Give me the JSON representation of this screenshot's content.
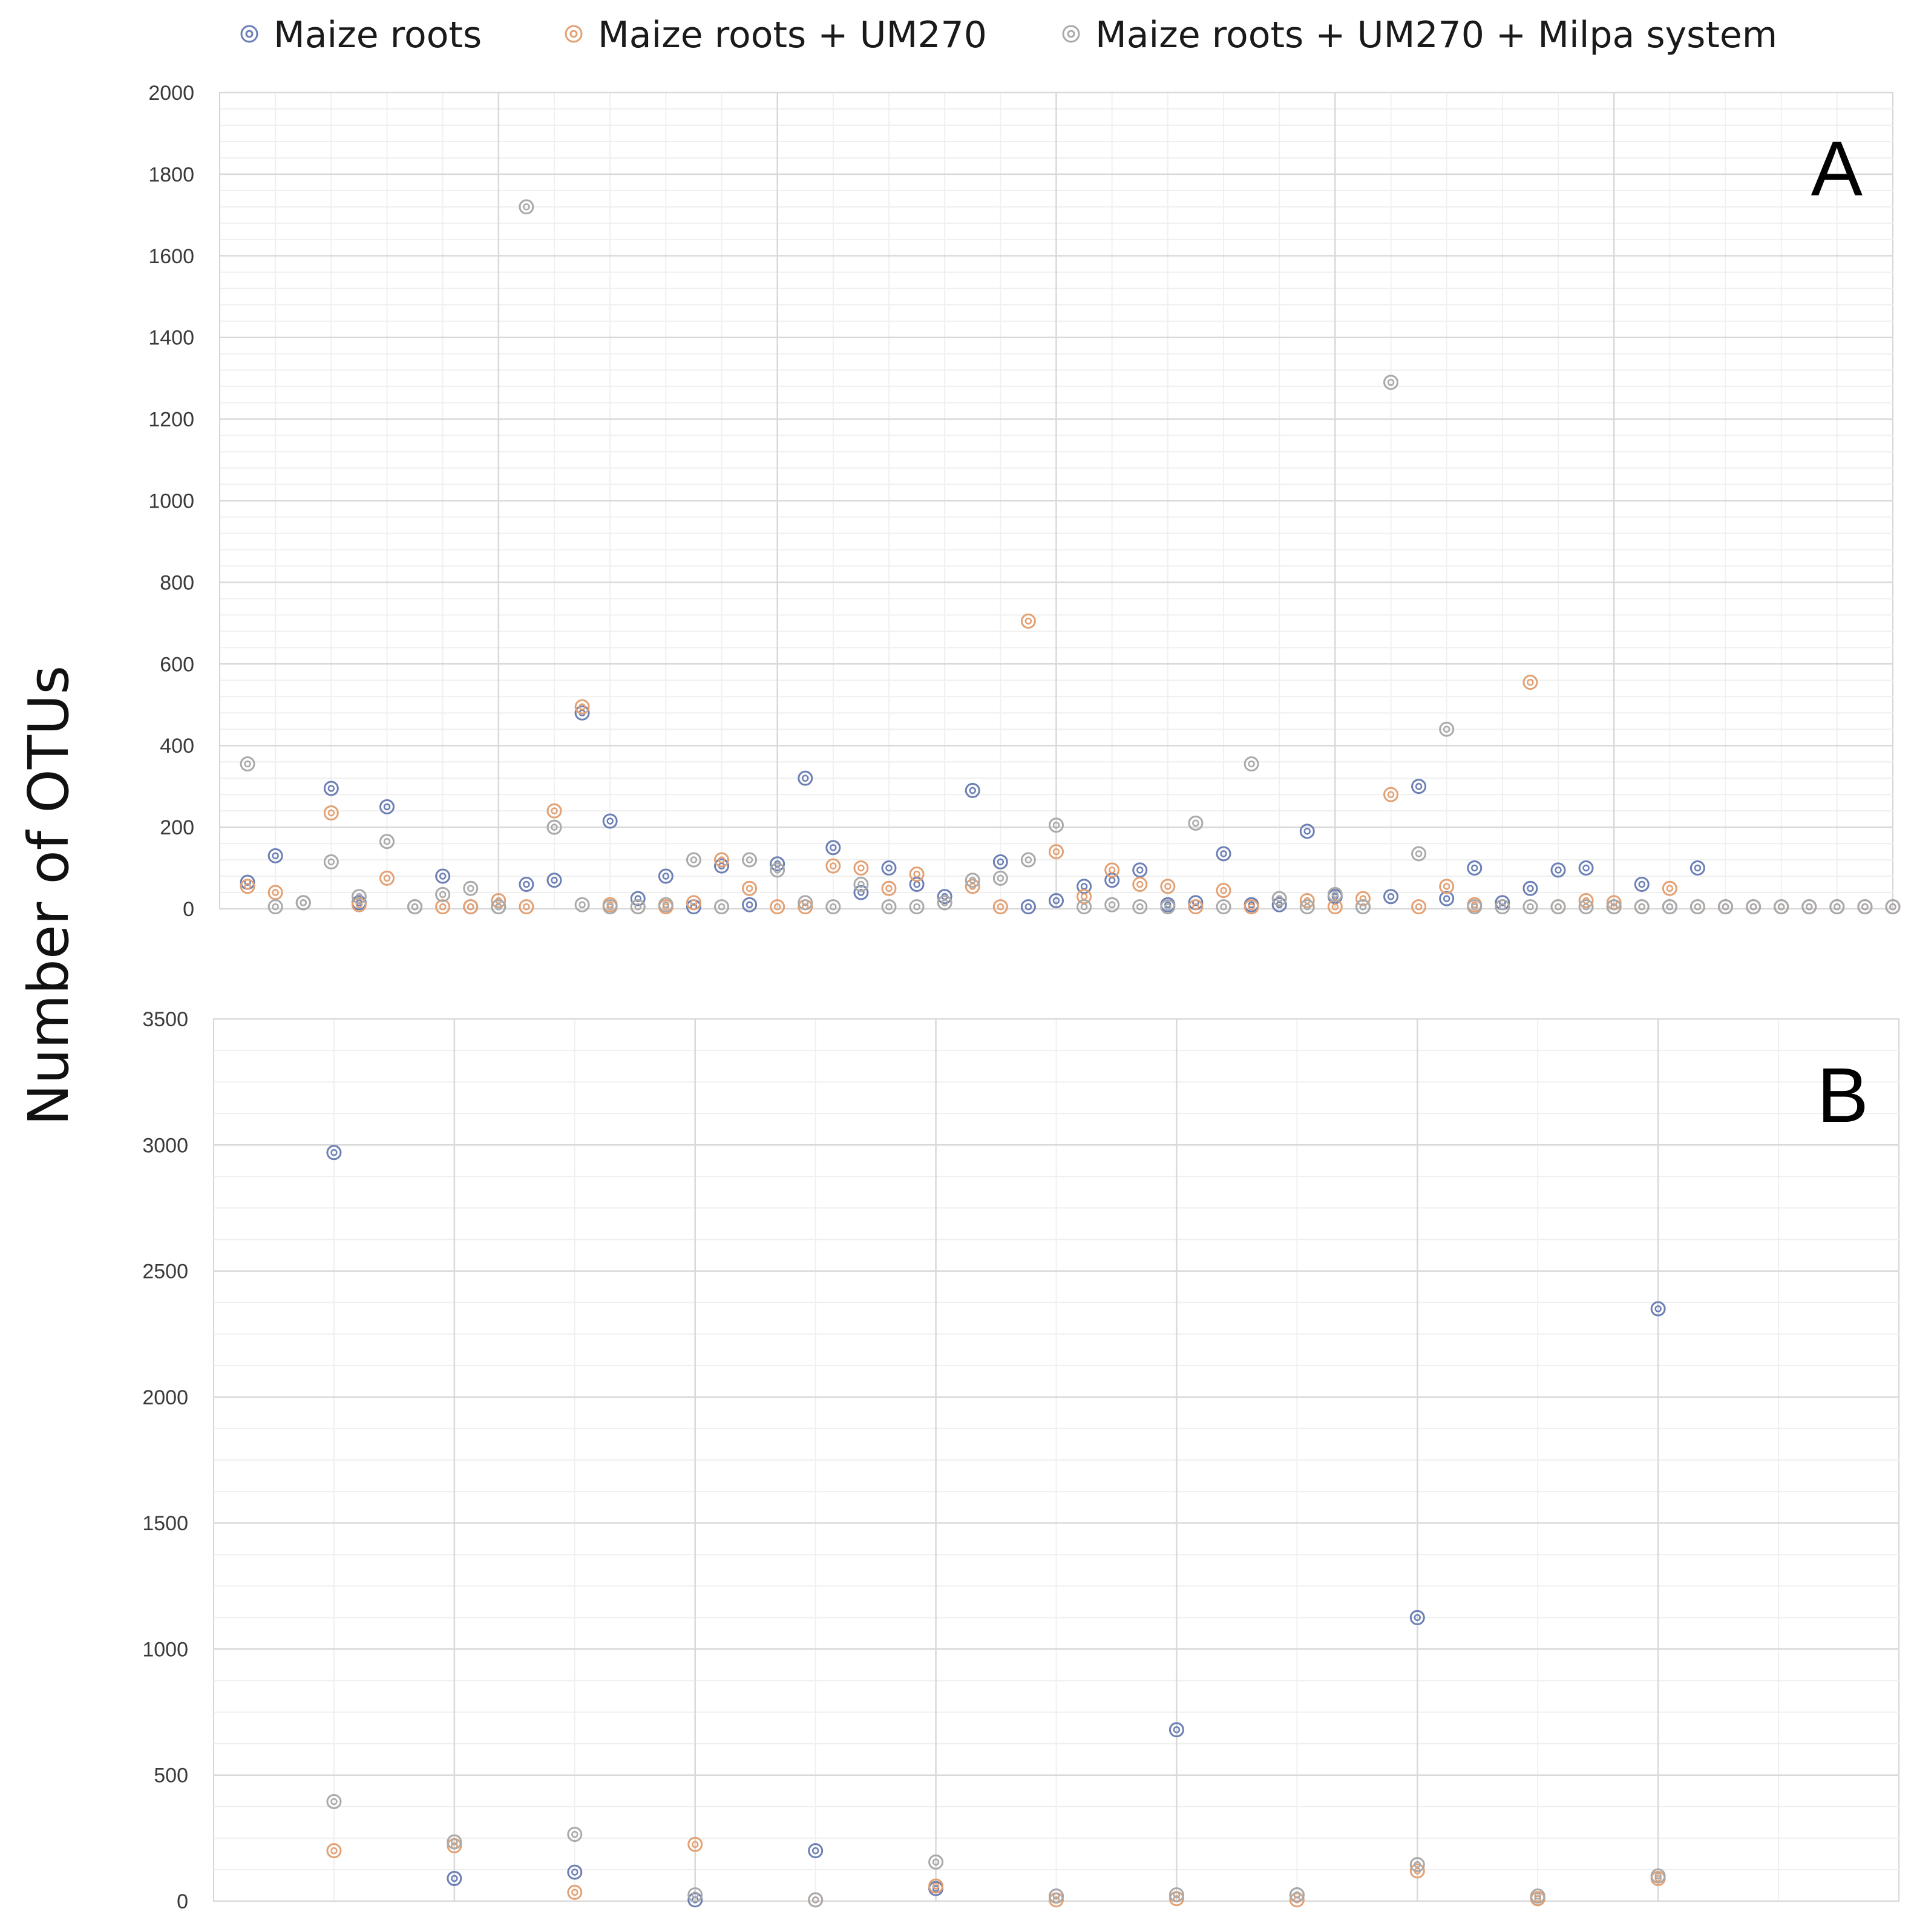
{
  "y_axis_label": "Number of OTUs",
  "legend": [
    {
      "label": "Maize roots",
      "color": "#6b7fb5",
      "icon": "double-circle-marker"
    },
    {
      "label": "Maize roots + UM270",
      "color": "#e3a072",
      "icon": "double-circle-marker"
    },
    {
      "label": "Maize roots + UM270 + Milpa system",
      "color": "#a9a9a9",
      "icon": "double-circle-marker"
    }
  ],
  "chart_data": [
    {
      "type": "scatter",
      "panel": "A",
      "ylim": [
        0,
        2000
      ],
      "yticks": [
        0,
        200,
        400,
        600,
        800,
        1000,
        1200,
        1400,
        1600,
        1800,
        2000
      ],
      "xlim": [
        0,
        60
      ],
      "grid": true,
      "legend_position": "top",
      "series": [
        {
          "name": "Maize roots",
          "color": "#6b7fb5",
          "x": [
            1,
            2,
            3,
            4,
            5,
            6,
            7,
            8,
            9,
            10,
            11,
            12,
            13,
            14,
            15,
            16,
            17,
            18,
            19,
            20,
            21,
            22,
            23,
            24,
            25,
            26,
            27,
            28,
            29,
            30,
            31,
            32,
            33,
            34,
            35,
            36,
            37,
            38,
            39,
            40,
            41,
            42,
            43,
            44,
            45,
            46,
            47,
            48,
            49,
            50,
            51,
            52,
            53,
            54,
            55,
            56,
            57,
            58,
            59,
            60
          ],
          "values": [
            65,
            130,
            15,
            295,
            15,
            250,
            5,
            80,
            5,
            5,
            60,
            70,
            480,
            215,
            25,
            80,
            5,
            105,
            10,
            110,
            320,
            150,
            40,
            100,
            60,
            30,
            290,
            115,
            5,
            20,
            55,
            70,
            95,
            10,
            15,
            135,
            10,
            10,
            190,
            30,
            5,
            30,
            300,
            25,
            100,
            15,
            50,
            95,
            100,
            5,
            60,
            5,
            100,
            5,
            5,
            5,
            5,
            5,
            5,
            5
          ]
        },
        {
          "name": "Maize roots + UM270",
          "color": "#e3a072",
          "x": [
            1,
            2,
            3,
            4,
            5,
            6,
            7,
            8,
            9,
            10,
            11,
            12,
            13,
            14,
            15,
            16,
            17,
            18,
            19,
            20,
            21,
            22,
            23,
            24,
            25,
            26,
            27,
            28,
            29,
            30,
            31,
            32,
            33,
            34,
            35,
            36,
            37,
            38,
            39,
            40,
            41,
            42,
            43,
            44,
            45,
            46,
            47,
            48,
            49,
            50,
            51,
            52,
            53,
            54,
            55,
            56,
            57,
            58,
            59,
            60
          ],
          "values": [
            55,
            40,
            15,
            235,
            10,
            75,
            5,
            5,
            5,
            20,
            5,
            240,
            495,
            10,
            5,
            5,
            15,
            120,
            50,
            5,
            5,
            105,
            100,
            50,
            85,
            15,
            55,
            5,
            705,
            140,
            30,
            95,
            60,
            55,
            5,
            45,
            5,
            25,
            20,
            5,
            25,
            280,
            5,
            55,
            10,
            5,
            555,
            5,
            20,
            15,
            5,
            50,
            5,
            5,
            5,
            5,
            5,
            5,
            5,
            5
          ]
        },
        {
          "name": "Maize roots + UM270 + Milpa system",
          "color": "#a9a9a9",
          "x": [
            1,
            2,
            3,
            4,
            5,
            6,
            7,
            8,
            9,
            10,
            11,
            12,
            13,
            14,
            15,
            16,
            17,
            18,
            19,
            20,
            21,
            22,
            23,
            24,
            25,
            26,
            27,
            28,
            29,
            30,
            31,
            32,
            33,
            34,
            35,
            36,
            37,
            38,
            39,
            40,
            41,
            42,
            43,
            44,
            45,
            46,
            47,
            48,
            49,
            50,
            51,
            52,
            53,
            54,
            55,
            56,
            57,
            58,
            59,
            60
          ],
          "values": [
            355,
            5,
            15,
            115,
            30,
            165,
            5,
            35,
            50,
            5,
            1720,
            200,
            10,
            5,
            5,
            10,
            120,
            5,
            120,
            95,
            15,
            5,
            60,
            5,
            5,
            15,
            70,
            75,
            120,
            205,
            5,
            10,
            5,
            5,
            210,
            5,
            355,
            25,
            5,
            35,
            5,
            1290,
            135,
            440,
            5,
            5,
            5,
            5,
            5,
            5,
            5,
            5,
            5,
            5,
            5,
            5,
            5,
            5,
            5,
            5
          ]
        }
      ]
    },
    {
      "type": "scatter",
      "panel": "B",
      "ylim": [
        0,
        3500
      ],
      "yticks": [
        0,
        500,
        1000,
        1500,
        2000,
        2500,
        3000,
        3500
      ],
      "xlim": [
        0,
        14
      ],
      "grid": true,
      "legend_position": "top",
      "series": [
        {
          "name": "Maize roots",
          "color": "#6b7fb5",
          "x": [
            1,
            2,
            3,
            4,
            5,
            6,
            7,
            8,
            9,
            10,
            11,
            12
          ],
          "values": [
            2970,
            90,
            115,
            5,
            200,
            50,
            20,
            680,
            25,
            1125,
            10,
            2350
          ]
        },
        {
          "name": "Maize roots + UM270",
          "color": "#e3a072",
          "x": [
            1,
            2,
            3,
            4,
            5,
            6,
            7,
            8,
            9,
            10,
            11,
            12
          ],
          "values": [
            200,
            220,
            35,
            225,
            5,
            60,
            5,
            10,
            5,
            120,
            10,
            90
          ]
        },
        {
          "name": "Maize roots + UM270 + Milpa system",
          "color": "#a9a9a9",
          "x": [
            1,
            2,
            3,
            4,
            5,
            6,
            7,
            8,
            9,
            10,
            11,
            12
          ],
          "values": [
            395,
            235,
            265,
            25,
            5,
            155,
            20,
            25,
            25,
            145,
            20,
            100
          ]
        }
      ]
    }
  ]
}
